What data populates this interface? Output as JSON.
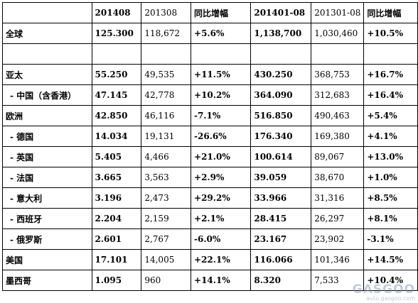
{
  "header": [
    "",
    "201408",
    "201308",
    "同比增幅",
    "201401-08",
    "201301-08",
    "同比增幅"
  ],
  "rows": [
    {
      "label": "全球",
      "indent": false,
      "values": [
        "125.300",
        "118,672",
        "+5.6%",
        "1,138,700",
        "1,030,460",
        "+10.5%"
      ]
    },
    {
      "label": "",
      "indent": false,
      "values": [
        "",
        "",
        "",
        "",
        "",
        ""
      ]
    },
    {
      "label": "亚太",
      "indent": false,
      "values": [
        "55.250",
        "49,535",
        "+11.5%",
        "430.250",
        "368,753",
        "+16.7%"
      ]
    },
    {
      "label": "- 中国（含香港）",
      "indent": true,
      "values": [
        "47.145",
        "42,778",
        "+10.2%",
        "364.090",
        "312,683",
        "+16.4%"
      ]
    },
    {
      "label": "欧洲",
      "indent": false,
      "values": [
        "42.850",
        "46,116",
        "-7.1%",
        "516.850",
        "490,463",
        "+5.4%"
      ]
    },
    {
      "label": "- 德国",
      "indent": true,
      "values": [
        "14.034",
        "19,131",
        "-26.6%",
        "176.340",
        "169,380",
        "+4.1%"
      ]
    },
    {
      "label": "- 英国",
      "indent": true,
      "values": [
        "5.405",
        "4,466",
        "+21.0%",
        "100.614",
        "89,067",
        "+13.0%"
      ]
    },
    {
      "label": "- 法国",
      "indent": true,
      "values": [
        "3.665",
        "3,563",
        "+2.9%",
        "39.059",
        "38,670",
        "+1.0%"
      ]
    },
    {
      "label": "- 意大利",
      "indent": true,
      "values": [
        "3.196",
        "2,473",
        "+29.2%",
        "33.966",
        "31,316",
        "+8.5%"
      ]
    },
    {
      "label": "- 西班牙",
      "indent": true,
      "values": [
        "2.204",
        "2,159",
        "+2.1%",
        "28.415",
        "26,297",
        "+8.1%"
      ]
    },
    {
      "label": "- 俄罗斯",
      "indent": true,
      "values": [
        "2.601",
        "2,767",
        "-6.0%",
        "23.167",
        "23,902",
        "-3.1%"
      ]
    },
    {
      "label": "美国",
      "indent": false,
      "values": [
        "17.101",
        "14,005",
        "+22.1%",
        "116.066",
        "101,346",
        "+14.5%"
      ]
    },
    {
      "label": "墨西哥",
      "indent": false,
      "values": [
        "1.095",
        "960",
        "+14.1%",
        "8.320",
        "7,533",
        "+10.4%"
      ]
    }
  ],
  "watermark": {
    "logo": "GASGOO",
    "url": "auto.gasgoo.com"
  }
}
